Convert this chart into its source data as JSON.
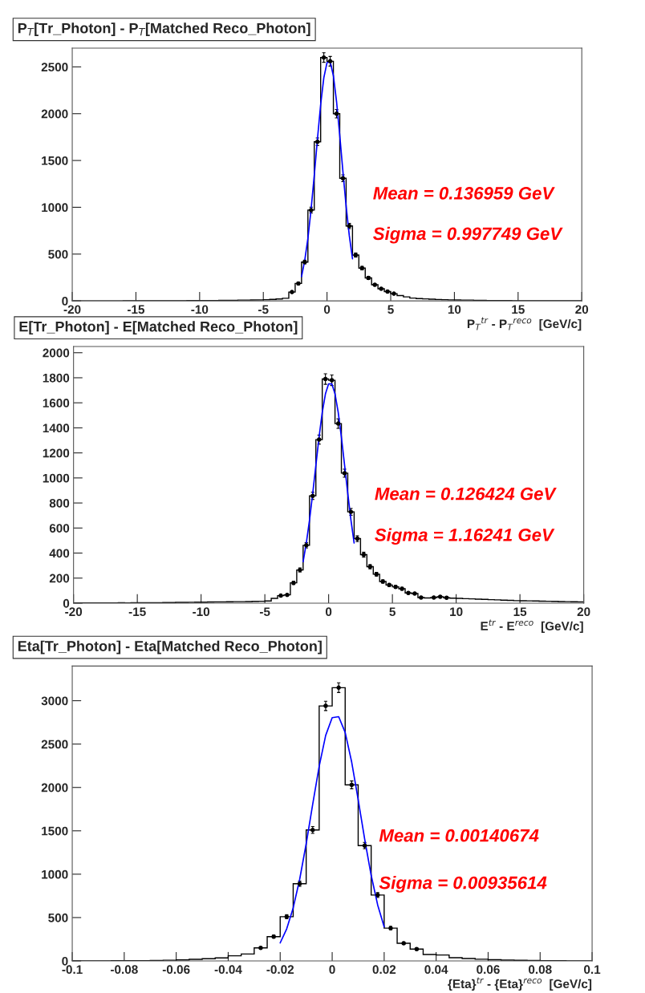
{
  "chart_data": [
    {
      "type": "histogram",
      "title": "P$_{T}$[Tr_Photon] - P$_{T}$[Matched Reco_Photon]",
      "xlabel": "P$_{T}$$^{tr}$ - P$_{T}$$^{reco}$  [GeV/c]",
      "color": "#000000",
      "bins": [
        -20,
        -19.5,
        -19,
        -18.5,
        -18,
        -17.5,
        -17,
        -16.5,
        -16,
        -15.5,
        -15,
        -14.5,
        -14,
        -13.5,
        -13,
        -12.5,
        -12,
        -11.5,
        -11,
        -10.5,
        -10,
        -9.5,
        -9,
        -8.5,
        -8,
        -7.5,
        -7,
        -6.5,
        -6,
        -5.5,
        -5,
        -4.5,
        -4,
        -3.5,
        -3,
        -2.5,
        -2,
        -1.5,
        -1,
        -0.5,
        0,
        0.5,
        1,
        1.5,
        2,
        2.5,
        3,
        3.5,
        4,
        4.5,
        5,
        5.5,
        6,
        6.5,
        7,
        7.5,
        8,
        8.5,
        9,
        9.5,
        10,
        10.5,
        11,
        11.5,
        12,
        12.5,
        13,
        13.5,
        14,
        14.5,
        15,
        15.5,
        16,
        16.5,
        17,
        17.5,
        18,
        18.5,
        19,
        19.5,
        20
      ],
      "values": [
        0,
        1,
        0,
        1,
        1,
        0,
        1,
        1,
        2,
        1,
        2,
        1,
        2,
        2,
        3,
        2,
        3,
        3,
        4,
        3,
        4,
        5,
        5,
        6,
        6,
        7,
        8,
        9,
        10,
        11,
        13,
        16,
        20,
        28,
        94,
        186,
        415,
        970,
        1700,
        2600,
        2560,
        2000,
        1310,
        800,
        490,
        350,
        245,
        172,
        130,
        100,
        77,
        57,
        43,
        30,
        25,
        21,
        18,
        15,
        13,
        11,
        10,
        9,
        8,
        7,
        6,
        5,
        5,
        4,
        4,
        3,
        3,
        3,
        2,
        2,
        2,
        2,
        1,
        1,
        1,
        1
      ],
      "series": [
        {
          "type": "scatter",
          "marker": "circle",
          "color": "#000000",
          "x": [
            -2.75,
            -2.25,
            -1.75,
            -1.25,
            -0.75,
            -0.25,
            0.25,
            0.75,
            1.25,
            1.75,
            2.25,
            2.75,
            3.25,
            3.75,
            4.25,
            4.75,
            5.25
          ],
          "values": [
            94,
            186,
            415,
            970,
            1700,
            2600,
            2560,
            2000,
            1310,
            800,
            490,
            350,
            245,
            172,
            130,
            100,
            77
          ],
          "errors": [
            10,
            14,
            20,
            31,
            41,
            51,
            51,
            45,
            36,
            28,
            22,
            19,
            16,
            13,
            11,
            10,
            9
          ]
        },
        {
          "type": "line",
          "color": "#0000ff",
          "x": [
            -2,
            -1.75,
            -1.5,
            -1.25,
            -1,
            -0.75,
            -0.5,
            -0.25,
            0,
            0.25,
            0.5,
            0.75,
            1,
            1.25,
            1.5,
            1.75,
            2
          ],
          "values": [
            259,
            430,
            669,
            978,
            1343,
            1731,
            2096,
            2384,
            2546,
            2554,
            2405,
            2128,
            1768,
            1380,
            1011,
            696,
            450
          ]
        }
      ],
      "xlim": [
        -20,
        20
      ],
      "xticks": [
        -20,
        -15,
        -10,
        -5,
        0,
        5,
        10,
        15,
        20
      ],
      "ylim": [
        0,
        2700
      ],
      "yticks": [
        0,
        500,
        1000,
        1500,
        2000,
        2500
      ],
      "grid": false,
      "legend": false,
      "annotations": [
        "Mean = 0.136959 GeV",
        "Sigma = 0.997749 GeV"
      ]
    },
    {
      "type": "histogram",
      "title": "E[Tr_Photon] - E[Matched Reco_Photon]",
      "xlabel": "E$^{tr}$ - E$^{reco}$  [GeV/c]",
      "color": "#000000",
      "bins": [
        -20,
        -19.5,
        -19,
        -18.5,
        -18,
        -17.5,
        -17,
        -16.5,
        -16,
        -15.5,
        -15,
        -14.5,
        -14,
        -13.5,
        -13,
        -12.5,
        -12,
        -11.5,
        -11,
        -10.5,
        -10,
        -9.5,
        -9,
        -8.5,
        -8,
        -7.5,
        -7,
        -6.5,
        -6,
        -5.5,
        -5,
        -4.5,
        -4,
        -3.5,
        -3,
        -2.5,
        -2,
        -1.5,
        -1,
        -0.5,
        0,
        0.5,
        1,
        1.5,
        2,
        2.5,
        3,
        3.5,
        4,
        4.5,
        5,
        5.5,
        6,
        6.5,
        7,
        7.5,
        8,
        8.5,
        9,
        9.5,
        10,
        10.5,
        11,
        11.5,
        12,
        12.5,
        13,
        13.5,
        14,
        14.5,
        15,
        15.5,
        16,
        16.5,
        17,
        17.5,
        18,
        18.5,
        19,
        19.5,
        20
      ],
      "values": [
        1,
        1,
        2,
        1,
        2,
        2,
        2,
        3,
        2,
        3,
        3,
        4,
        3,
        4,
        5,
        5,
        6,
        6,
        7,
        8,
        8,
        9,
        10,
        10,
        11,
        12,
        12,
        13,
        14,
        15,
        17,
        38,
        60,
        66,
        162,
        265,
        462,
        857,
        1306,
        1790,
        1780,
        1434,
        1038,
        729,
        515,
        387,
        291,
        231,
        173,
        145,
        130,
        115,
        81,
        77,
        45,
        41,
        45,
        51,
        43,
        40,
        38,
        36,
        34,
        32,
        30,
        28,
        26,
        24,
        22,
        20,
        19,
        18,
        17,
        16,
        15,
        14,
        13,
        12,
        11,
        10
      ],
      "series": [
        {
          "type": "scatter",
          "marker": "circle",
          "color": "#000000",
          "x": [
            -3.75,
            -3.25,
            -2.75,
            -2.25,
            -1.75,
            -1.25,
            -0.75,
            -0.25,
            0.25,
            0.75,
            1.25,
            1.75,
            2.25,
            2.75,
            3.25,
            3.75,
            4.25,
            4.75,
            5.25,
            5.75,
            6.25,
            6.75,
            7.25,
            8.25,
            8.75,
            9.25
          ],
          "values": [
            60,
            66,
            162,
            265,
            462,
            857,
            1306,
            1790,
            1780,
            1434,
            1038,
            729,
            515,
            387,
            291,
            231,
            173,
            145,
            130,
            115,
            81,
            77,
            45,
            45,
            51,
            43
          ],
          "errors": [
            8,
            8,
            13,
            16,
            21,
            29,
            36,
            42,
            42,
            38,
            32,
            27,
            23,
            20,
            17,
            15,
            13,
            12,
            11,
            11,
            9,
            9,
            7,
            7,
            7,
            7
          ]
        },
        {
          "type": "line",
          "color": "#0000ff",
          "x": [
            -2,
            -1.75,
            -1.5,
            -1.25,
            -1,
            -0.75,
            -0.5,
            -0.25,
            0,
            0.25,
            0.5,
            0.75,
            1,
            1.25,
            1.5,
            1.75,
            2
          ],
          "values": [
            331,
            479,
            662,
            874,
            1101,
            1326,
            1523,
            1671,
            1751,
            1751,
            1672,
            1525,
            1327,
            1103,
            876,
            664,
            480
          ]
        }
      ],
      "xlim": [
        -20,
        20
      ],
      "xticks": [
        -20,
        -15,
        -10,
        -5,
        0,
        5,
        10,
        15,
        20
      ],
      "ylim": [
        0,
        2050
      ],
      "yticks": [
        0,
        200,
        400,
        600,
        800,
        1000,
        1200,
        1400,
        1600,
        1800,
        2000
      ],
      "grid": false,
      "legend": false,
      "annotations": [
        "Mean = 0.126424 GeV",
        "Sigma = 1.16241 GeV"
      ]
    },
    {
      "type": "histogram",
      "title": "Eta[Tr_Photon] - Eta[Matched Reco_Photon]",
      "xlabel": "{Eta}$^{tr}$ - {Eta}$^{reco}$  [GeV/c]",
      "color": "#000000",
      "bins": [
        -0.1,
        -0.095,
        -0.09,
        -0.085,
        -0.08,
        -0.075,
        -0.07,
        -0.065,
        -0.06,
        -0.055,
        -0.05,
        -0.045,
        -0.04,
        -0.035,
        -0.03,
        -0.025,
        -0.02,
        -0.015,
        -0.01,
        -0.005,
        0,
        0.005,
        0.01,
        0.015,
        0.02,
        0.025,
        0.03,
        0.035,
        0.04,
        0.045,
        0.05,
        0.055,
        0.06,
        0.065,
        0.07,
        0.075,
        0.08,
        0.085,
        0.09,
        0.095,
        0.1
      ],
      "values": [
        0,
        1,
        1,
        2,
        3,
        4,
        6,
        8,
        12,
        18,
        25,
        35,
        59,
        80,
        150,
        280,
        510,
        890,
        1510,
        2940,
        3150,
        2030,
        1330,
        760,
        378,
        204,
        136,
        74,
        68,
        37,
        28,
        20,
        14,
        10,
        7,
        5,
        3,
        2,
        1,
        1
      ],
      "series": [
        {
          "type": "scatter",
          "marker": "circle",
          "color": "#000000",
          "x": [
            -0.0275,
            -0.0225,
            -0.0175,
            -0.0125,
            -0.0075,
            -0.0025,
            0.0025,
            0.0075,
            0.0125,
            0.0175,
            0.0225,
            0.0275,
            0.0325
          ],
          "values": [
            150,
            280,
            510,
            890,
            1510,
            2940,
            3150,
            2030,
            1330,
            760,
            378,
            204,
            136
          ],
          "errors": [
            12,
            17,
            23,
            30,
            39,
            54,
            56,
            45,
            36,
            28,
            19,
            14,
            12
          ]
        },
        {
          "type": "line",
          "color": "#0000ff",
          "x": [
            -0.02,
            -0.0175,
            -0.015,
            -0.0125,
            -0.01,
            -0.0075,
            -0.005,
            -0.0025,
            0,
            0.0025,
            0.005,
            0.0075,
            0.01,
            0.0125,
            0.015,
            0.0175,
            0.02
          ],
          "values": [
            208,
            369,
            611,
            941,
            1350,
            1804,
            2244,
            2600,
            2804,
            2816,
            2634,
            2293,
            1860,
            1404,
            987,
            646,
            394
          ]
        }
      ],
      "xlim": [
        -0.1,
        0.1
      ],
      "xticks": [
        -0.1,
        -0.08,
        -0.06,
        -0.04,
        -0.02,
        0,
        0.02,
        0.04,
        0.06,
        0.08,
        0.1
      ],
      "ylim": [
        0,
        3400
      ],
      "yticks": [
        0,
        500,
        1000,
        1500,
        2000,
        2500,
        3000
      ],
      "grid": false,
      "legend": false,
      "annotations": [
        "Mean = 0.00140674",
        "Sigma = 0.00935614"
      ]
    }
  ]
}
